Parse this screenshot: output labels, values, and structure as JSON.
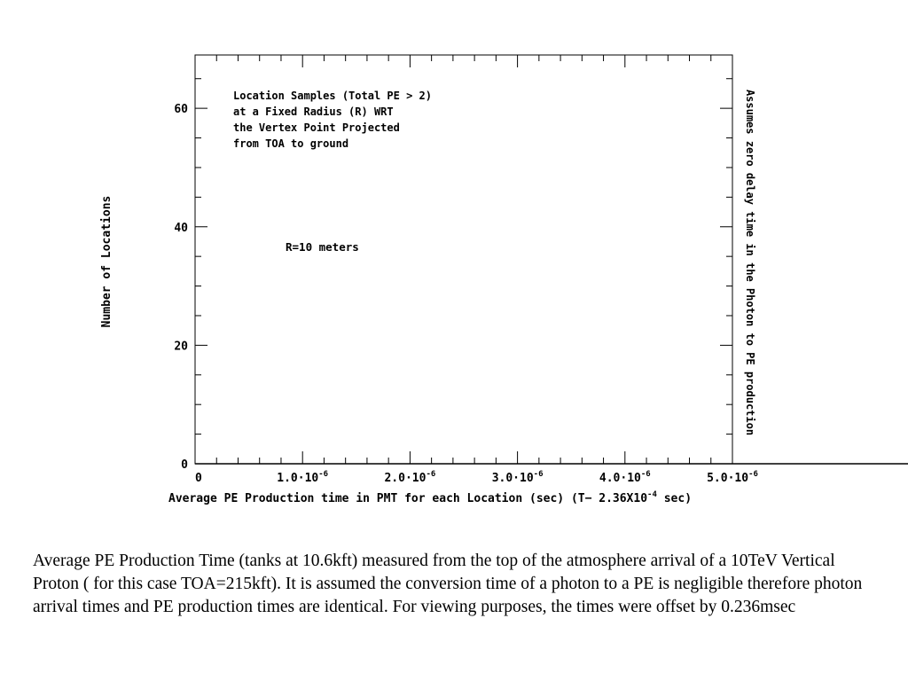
{
  "chart_data": {
    "type": "histogram",
    "xlabel": "Average PE Production time in PMT for each Location (sec) (T− 2.36X10",
    "xlabel_exp": "-4",
    "xlabel_tail": " sec)",
    "ylabel": "Number of Locations",
    "right_label": "Assumes zero delay time in the Photon to PE production",
    "annotation": [
      "Location Samples (Total PE > 2)",
      "at a Fixed Radius (R) WRT",
      "the Vertex Point Projected",
      "from TOA to ground"
    ],
    "xlim": [
      0,
      5e-06
    ],
    "ylim": [
      0,
      69
    ],
    "x_ticks": [
      {
        "value": 0,
        "mantissa": "0",
        "exp": ""
      },
      {
        "value": 1e-06,
        "mantissa": "1.0·10",
        "exp": "-6"
      },
      {
        "value": 2e-06,
        "mantissa": "2.0·10",
        "exp": "-6"
      },
      {
        "value": 3e-06,
        "mantissa": "3.0·10",
        "exp": "-6"
      },
      {
        "value": 4e-06,
        "mantissa": "4.0·10",
        "exp": "-6"
      },
      {
        "value": 5e-06,
        "mantissa": "5.0·10",
        "exp": "-6"
      }
    ],
    "y_ticks": [
      0,
      20,
      40,
      60
    ],
    "bin_width": 1e-07,
    "series": [
      {
        "name": "R=10 meters",
        "color": "#000000",
        "bin_start": 0,
        "values": [
          0,
          0,
          0,
          0,
          0,
          0,
          0,
          0,
          0,
          0,
          0,
          0,
          0,
          0,
          0,
          0,
          0,
          0,
          0,
          0,
          0,
          0,
          0,
          0,
          0,
          0,
          0,
          0,
          0,
          0,
          0,
          0,
          0,
          0,
          0,
          0,
          0,
          0,
          0,
          0,
          0,
          0,
          0,
          0,
          0,
          0,
          0,
          0,
          0,
          0,
          0,
          0,
          0,
          0,
          0,
          0,
          0,
          0,
          0,
          0,
          0,
          0,
          0,
          0,
          0,
          0,
          0,
          0,
          0,
          0,
          0,
          0,
          0,
          0,
          0,
          0,
          0,
          0,
          0,
          0,
          0,
          0,
          0,
          0,
          0,
          0,
          0,
          0,
          0,
          0,
          0,
          0,
          0,
          0,
          0,
          0,
          0,
          0,
          0,
          0,
          0,
          0,
          0,
          0,
          0,
          0,
          0,
          0,
          0,
          0,
          0,
          0,
          0,
          0,
          0,
          0,
          0,
          0,
          0,
          0,
          0,
          0,
          0,
          0,
          0,
          0,
          0,
          0,
          0,
          0,
          0,
          0,
          0,
          0,
          0,
          0,
          0,
          0,
          0,
          0,
          0,
          0,
          0,
          0,
          0,
          0,
          0,
          0,
          0,
          0,
          0,
          0,
          0,
          0,
          0,
          0,
          0,
          0,
          0,
          0,
          0,
          0,
          0,
          0,
          0,
          0,
          0,
          0,
          0,
          0,
          0,
          0,
          0,
          0,
          0,
          0,
          0,
          0,
          0,
          0,
          0,
          0,
          0,
          0,
          0,
          0,
          0,
          0,
          0,
          0,
          0,
          0,
          0,
          0,
          0,
          0,
          0,
          0,
          0,
          0,
          0,
          0,
          0,
          0,
          0,
          0,
          0,
          0,
          0,
          0,
          0,
          0,
          0,
          0,
          0,
          0,
          0,
          0,
          0,
          0,
          0,
          0,
          0,
          0,
          0,
          0,
          0,
          0,
          0,
          0,
          0,
          0,
          0,
          0,
          0,
          0,
          0,
          0,
          0,
          0,
          0,
          0,
          0,
          0,
          0,
          0,
          0,
          0,
          0,
          0,
          0,
          0,
          0,
          0,
          0,
          0,
          0,
          0,
          0,
          0,
          0,
          0,
          0,
          0,
          0,
          0,
          0,
          0,
          0,
          0,
          0,
          0,
          0,
          0,
          0,
          0,
          0,
          0,
          0,
          0,
          0,
          0,
          0,
          0,
          0,
          0,
          0,
          0,
          0,
          0,
          0,
          0,
          0,
          0,
          0,
          0,
          0,
          0,
          0,
          0,
          0,
          0,
          0,
          0,
          0,
          0,
          0,
          0,
          0,
          0,
          0,
          0,
          0,
          0,
          0,
          0,
          0,
          0,
          0,
          0,
          0,
          0,
          0,
          0,
          0,
          0,
          0,
          0,
          0,
          0,
          0,
          0,
          0,
          0,
          0,
          0,
          0,
          0,
          0,
          0,
          0,
          0,
          0,
          0,
          0,
          0,
          0,
          0,
          0,
          0,
          0,
          0,
          0,
          0,
          0,
          0,
          0,
          0,
          0,
          0,
          0,
          0,
          0,
          0,
          0,
          0,
          0,
          0,
          0,
          0,
          0,
          0,
          0,
          0,
          0,
          0,
          0,
          0,
          0,
          0,
          0,
          0,
          0,
          0,
          0,
          0,
          0,
          0,
          0,
          0,
          0,
          0,
          0,
          0,
          0,
          0,
          0,
          0,
          0,
          0,
          0,
          0,
          0,
          0,
          0,
          0,
          0,
          0,
          0,
          0,
          0,
          0,
          0,
          0,
          0,
          0,
          0,
          0,
          0,
          0,
          0,
          0,
          0,
          0,
          0,
          0,
          0,
          0,
          0,
          0,
          0,
          0,
          0,
          0,
          0,
          0,
          0,
          0,
          0,
          0,
          0,
          0,
          0,
          0,
          0,
          0,
          0,
          0,
          0,
          0,
          0,
          0,
          0,
          0,
          0,
          0,
          0,
          0,
          0,
          0,
          0,
          0,
          0,
          0,
          0,
          0,
          0,
          0,
          0,
          0,
          0,
          0,
          0,
          0,
          0,
          0,
          0,
          0,
          0,
          0,
          0,
          0,
          0,
          0,
          0,
          0,
          0,
          0,
          0,
          0,
          0,
          0,
          0,
          0,
          0,
          0,
          0,
          0,
          0,
          0,
          0,
          0,
          0,
          0,
          0,
          0,
          0,
          0,
          0,
          0,
          0,
          0,
          0,
          0,
          0,
          0,
          0,
          0,
          0,
          0,
          0,
          0,
          0,
          0,
          0,
          0,
          0,
          0,
          0,
          0,
          0,
          0,
          0,
          0,
          0,
          0,
          0,
          0,
          0,
          0,
          0,
          0,
          0
        ]
      }
    ]
  },
  "caption": "Average PE Production Time (tanks at 10.6kft) measured from the top of the atmosphere arrival of a 10TeV Vertical Proton ( for this case TOA=215kft). It is assumed the conversion  time of a photon to a PE is negligible therefore photon arrival times and PE production times are identical. For viewing purposes, the times were offset by 0.236msec"
}
